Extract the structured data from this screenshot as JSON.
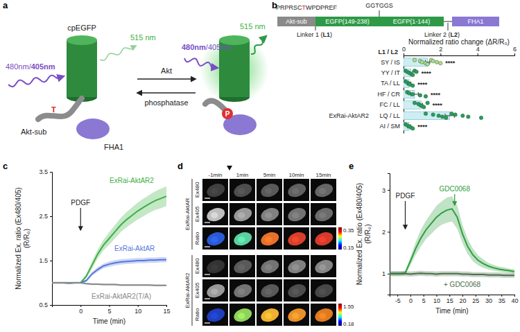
{
  "panel_labels": [
    "a",
    "b",
    "c",
    "d",
    "e"
  ],
  "diagram_a": {
    "excitation_left": [
      "480nm/",
      "405nm"
    ],
    "excitation_right": [
      "480nm",
      "/405nm"
    ],
    "emission": "515 nm",
    "fp": "cpEGFP",
    "substrate": "Akt-sub",
    "residue": "T",
    "phospho": "P",
    "domain": "FHA1",
    "forward": "Akt",
    "reverse": "phosphatase"
  },
  "construct_b": {
    "sequence": [
      "PRPRSC",
      "T",
      "WPDPREF"
    ],
    "linker_seq": "GGTGGS",
    "domains": [
      "Akt-sub",
      "EGFP(149-238)",
      "EGFP(1-144)",
      "FHA1"
    ],
    "linker1": [
      "Linker 1 (",
      "L1",
      ")"
    ],
    "linker2": [
      "Linker 2 (",
      "L2",
      ")"
    ]
  },
  "images_d": {
    "times": [
      "-1min",
      "1min",
      "5min",
      "10min",
      "15min"
    ],
    "groups": [
      "ExRai-AktAR",
      "ExRai-AktAR2"
    ],
    "channels": [
      "Ex480",
      "Ex405",
      "Ratio"
    ],
    "colorbars": [
      {
        "max": 0.35,
        "min": 0.15
      },
      {
        "max": 1.55,
        "min": 0.18
      }
    ]
  },
  "chart_data": [
    {
      "type": "bar",
      "orientation": "horizontal",
      "xlabel": "Normalized ratio change (ΔR/R₀)",
      "category_header": "L1 / L2",
      "categories": [
        "SY / IS",
        "YY / IT",
        "TA / LL",
        "HF / CR",
        "FC / LL",
        "LQ / LL",
        "AI / SM"
      ],
      "values": [
        1.3,
        0.4,
        0.3,
        0.6,
        0.95,
        2.5,
        0.3
      ],
      "errors": [
        0.12,
        0.08,
        0.1,
        0.2,
        0.08,
        0.25,
        0.08
      ],
      "points": [
        [
          0.6,
          0.9,
          1.0,
          1.2,
          1.3,
          1.5,
          1.6,
          1.8,
          2.0
        ],
        [
          0.1,
          0.2,
          0.3,
          0.4,
          0.5,
          0.6,
          0.7
        ],
        [
          0.1,
          0.2,
          0.3,
          0.35,
          0.5
        ],
        [
          0.2,
          0.3,
          0.5,
          0.9,
          1.2
        ],
        [
          0.6,
          0.8,
          0.9,
          1.0,
          1.1,
          1.3
        ],
        [
          1.2,
          1.6,
          1.9,
          2.1,
          2.3,
          2.6,
          2.8,
          3.2,
          3.5,
          4.2
        ],
        [
          0.1,
          0.2,
          0.3,
          0.4,
          0.5
        ]
      ],
      "significance": [
        "****",
        "****",
        "****",
        "****",
        "****",
        null,
        "****"
      ],
      "row_labels": [
        null,
        null,
        null,
        null,
        null,
        "ExRai-AktAR2",
        null
      ],
      "xlim": [
        0,
        6
      ],
      "xticks": [
        0,
        2,
        4,
        6
      ],
      "color": "#cdeef2",
      "colors": [
        "#b8d98e",
        "#2f9a5e",
        "#2f9a5e",
        "#2f9a5e",
        "#2f9a5e",
        "#2f9a5e",
        "#2f9a5e"
      ]
    },
    {
      "type": "line",
      "xlabel": "Time (min)",
      "ylabel": [
        "Normalized Ex. ratio (Ex480/405)",
        "(R/R₀)"
      ],
      "x": [
        -5,
        -4,
        -3,
        -2,
        -1,
        0,
        1,
        2,
        3,
        4,
        5,
        6,
        7,
        8,
        9,
        10,
        11,
        12,
        13,
        14,
        15
      ],
      "series": [
        {
          "name": "ExRai-AktAR2",
          "color": "#3cb043",
          "values": [
            1.0,
            1.0,
            1.0,
            1.0,
            1.0,
            1.0,
            1.15,
            1.4,
            1.65,
            1.85,
            2.0,
            2.15,
            2.3,
            2.42,
            2.52,
            2.62,
            2.7,
            2.78,
            2.85,
            2.9,
            2.95
          ],
          "errors": [
            0.02,
            0.02,
            0.02,
            0.02,
            0.02,
            0.02,
            0.05,
            0.08,
            0.1,
            0.12,
            0.14,
            0.15,
            0.16,
            0.17,
            0.18,
            0.19,
            0.2,
            0.2,
            0.21,
            0.22,
            0.22
          ]
        },
        {
          "name": "ExRai-AktAR",
          "color": "#5577dd",
          "values": [
            1.0,
            1.0,
            1.0,
            1.0,
            1.0,
            1.0,
            1.05,
            1.2,
            1.3,
            1.38,
            1.42,
            1.45,
            1.47,
            1.48,
            1.49,
            1.5,
            1.5,
            1.51,
            1.51,
            1.52,
            1.52
          ],
          "errors": [
            0.02,
            0.02,
            0.02,
            0.02,
            0.02,
            0.02,
            0.03,
            0.04,
            0.05,
            0.05,
            0.06,
            0.06,
            0.06,
            0.06,
            0.06,
            0.06,
            0.06,
            0.06,
            0.06,
            0.06,
            0.06
          ]
        },
        {
          "name": "ExRai-AktAR2(T/A)",
          "color": "#888888",
          "values": [
            1.0,
            1.0,
            1.0,
            0.99,
            1.0,
            1.0,
            0.98,
            0.97,
            0.97,
            0.96,
            0.96,
            0.96,
            0.95,
            0.95,
            0.95,
            0.95,
            0.95,
            0.95,
            0.94,
            0.94,
            0.94
          ],
          "errors": [
            0.02,
            0.02,
            0.02,
            0.02,
            0.02,
            0.02,
            0.02,
            0.02,
            0.02,
            0.02,
            0.02,
            0.02,
            0.02,
            0.02,
            0.02,
            0.02,
            0.02,
            0.02,
            0.02,
            0.02,
            0.02
          ]
        }
      ],
      "xlim": [
        -5,
        15
      ],
      "xticks": [
        0,
        5,
        10,
        15
      ],
      "ylim": [
        0.5,
        3.5
      ],
      "yticks": [
        0.5,
        1.5,
        2.5,
        3.5
      ],
      "annotations": [
        {
          "text": "PDGF",
          "x": 0
        }
      ]
    },
    {
      "type": "line",
      "xlabel": "Time (min)",
      "ylabel": [
        "Normalized Ex. ratio (Ex480/405)",
        "(R/R₀)"
      ],
      "x": [
        -8,
        -6,
        -4,
        -2,
        0,
        2,
        4,
        6,
        8,
        10,
        12,
        14,
        16,
        18,
        20,
        22,
        24,
        26,
        28,
        30,
        32,
        34,
        36,
        38,
        40
      ],
      "series": [
        {
          "color": "#2f9e3f",
          "values": [
            1.0,
            1.0,
            1.0,
            1.02,
            1.3,
            1.6,
            1.85,
            2.05,
            2.2,
            2.35,
            2.45,
            2.52,
            2.55,
            2.35,
            1.95,
            1.65,
            1.45,
            1.32,
            1.24,
            1.18,
            1.14,
            1.11,
            1.09,
            1.07,
            1.05
          ],
          "errors": [
            0.05,
            0.05,
            0.05,
            0.05,
            0.1,
            0.15,
            0.2,
            0.22,
            0.25,
            0.27,
            0.28,
            0.3,
            0.3,
            0.28,
            0.22,
            0.18,
            0.15,
            0.12,
            0.1,
            0.08,
            0.07,
            0.06,
            0.06,
            0.05,
            0.05
          ]
        },
        {
          "name": "+ GDC0068",
          "color": "#4a6e4a",
          "values": [
            1.0,
            1.0,
            1.0,
            1.0,
            0.99,
            1.0,
            1.01,
            1.0,
            1.0,
            0.99,
            1.0,
            1.0,
            1.0,
            1.0,
            0.99,
            0.99,
            0.98,
            0.98,
            0.98,
            0.97,
            0.97,
            0.97,
            0.96,
            0.96,
            0.96
          ],
          "errors": [
            0.06,
            0.06,
            0.06,
            0.06,
            0.06,
            0.06,
            0.06,
            0.06,
            0.06,
            0.06,
            0.06,
            0.06,
            0.06,
            0.06,
            0.06,
            0.06,
            0.06,
            0.06,
            0.06,
            0.06,
            0.06,
            0.06,
            0.06,
            0.06,
            0.06
          ]
        }
      ],
      "xlim": [
        -8,
        40
      ],
      "xticks": [
        -5,
        0,
        5,
        10,
        15,
        20,
        25,
        30,
        35,
        40
      ],
      "ylim": [
        0.5,
        3.4
      ],
      "yticks": [
        1,
        2,
        3
      ],
      "annotations": [
        {
          "text": "PDGF",
          "x": -2
        },
        {
          "text": "GDC0068",
          "x": 17
        }
      ]
    }
  ]
}
